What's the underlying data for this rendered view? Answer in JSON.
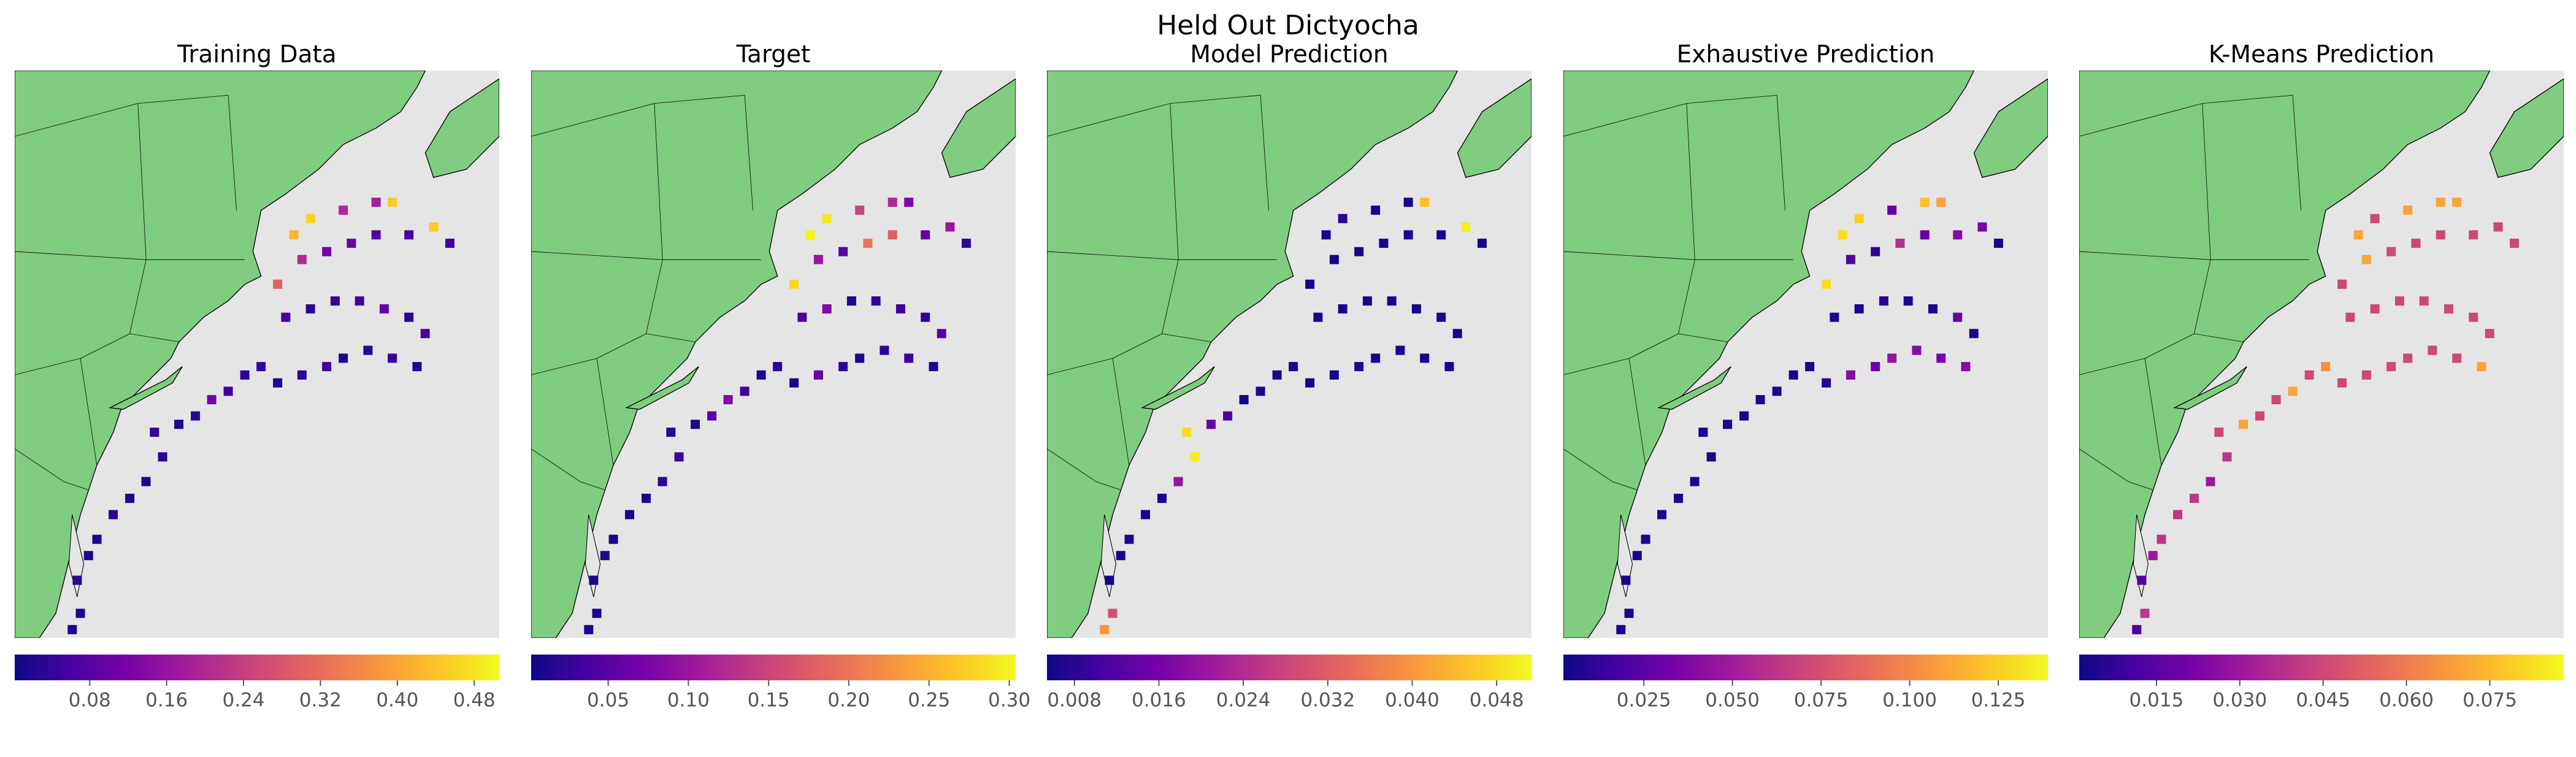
{
  "title": "Held Out Dictyocha",
  "chart_data": [
    {
      "type": "heatmap",
      "title": "Training Data",
      "colormap": "plasma",
      "xlim": [
        -77.5,
        -62
      ],
      "ylim": [
        34.5,
        46
      ],
      "x": [
        -75.66,
        -75.4,
        -75.5,
        -75.14,
        -74.87,
        -74.35,
        -73.82,
        -73.3,
        -72.77,
        -73.03,
        -72.25,
        -71.72,
        -71.2,
        -70.67,
        -70.14,
        -69.62,
        -69.09,
        -68.31,
        -67.52,
        -66.99,
        -66.2,
        -65.42,
        -64.63,
        -64.37,
        -64.89,
        -65.68,
        -66.47,
        -67.25,
        -68.04,
        -68.83,
        -69.09,
        -68.31,
        -67.52,
        -66.73,
        -65.94,
        -64.89,
        -64.1,
        -63.58,
        -68.57,
        -68.04,
        -66.99,
        -65.94,
        -65.42
      ],
      "y": [
        34.67,
        35.0,
        35.67,
        36.17,
        36.5,
        37.0,
        37.33,
        37.67,
        38.17,
        38.67,
        38.83,
        39.0,
        39.33,
        39.5,
        39.83,
        40.0,
        39.67,
        39.83,
        40.0,
        40.17,
        40.33,
        40.17,
        40.0,
        40.67,
        41.0,
        41.17,
        41.33,
        41.33,
        41.17,
        41.0,
        41.67,
        42.17,
        42.33,
        42.5,
        42.67,
        42.67,
        42.83,
        42.5,
        42.67,
        43.0,
        43.17,
        43.33,
        43.33
      ],
      "values": [
        0.02,
        0.02,
        0.03,
        0.02,
        0.02,
        0.03,
        0.02,
        0.02,
        0.03,
        0.04,
        0.02,
        0.03,
        0.12,
        0.05,
        0.03,
        0.04,
        0.02,
        0.03,
        0.05,
        0.02,
        0.03,
        0.04,
        0.02,
        0.06,
        0.03,
        0.1,
        0.05,
        0.04,
        0.03,
        0.06,
        0.3,
        0.2,
        0.12,
        0.1,
        0.08,
        0.06,
        0.45,
        0.05,
        0.42,
        0.46,
        0.2,
        0.18,
        0.45
      ],
      "clim": [
        0.002,
        0.506
      ],
      "cticks": [
        0.08,
        0.16,
        0.24,
        0.32,
        {
          "value": 0.4,
          "label": "0.40"
        },
        0.48
      ]
    },
    {
      "type": "heatmap",
      "title": "Target",
      "colormap": "plasma",
      "xlim": [
        -77.5,
        -62
      ],
      "ylim": [
        34.5,
        46
      ],
      "x": [
        -75.66,
        -75.4,
        -75.5,
        -75.14,
        -74.87,
        -74.35,
        -73.82,
        -73.3,
        -72.77,
        -73.03,
        -72.25,
        -71.72,
        -71.2,
        -70.67,
        -70.14,
        -69.62,
        -69.09,
        -68.31,
        -67.52,
        -66.99,
        -66.2,
        -65.42,
        -64.63,
        -64.37,
        -64.89,
        -65.68,
        -66.47,
        -67.25,
        -68.04,
        -68.83,
        -69.09,
        -68.31,
        -67.52,
        -66.73,
        -65.94,
        -64.89,
        -64.1,
        -63.58,
        -68.57,
        -68.04,
        -66.99,
        -65.94,
        -65.42
      ],
      "y": [
        34.67,
        35.0,
        35.67,
        36.17,
        36.5,
        37.0,
        37.33,
        37.67,
        38.17,
        38.67,
        38.83,
        39.0,
        39.33,
        39.5,
        39.83,
        40.0,
        39.67,
        39.83,
        40.0,
        40.17,
        40.33,
        40.17,
        40.0,
        40.67,
        41.0,
        41.17,
        41.33,
        41.33,
        41.17,
        41.0,
        41.67,
        42.17,
        42.33,
        42.5,
        42.67,
        42.67,
        42.83,
        42.5,
        42.67,
        43.0,
        43.17,
        43.33,
        43.33
      ],
      "values": [
        0.01,
        0.01,
        0.01,
        0.01,
        0.01,
        0.01,
        0.01,
        0.02,
        0.03,
        0.02,
        0.01,
        0.05,
        0.08,
        0.03,
        0.01,
        0.02,
        0.01,
        0.06,
        0.02,
        0.01,
        0.02,
        0.03,
        0.01,
        0.05,
        0.02,
        0.03,
        0.02,
        0.01,
        0.08,
        0.04,
        0.28,
        0.1,
        0.05,
        0.2,
        0.18,
        0.06,
        0.1,
        0.02,
        0.3,
        0.29,
        0.15,
        0.12,
        0.08
      ],
      "clim": [
        0.002,
        0.304
      ],
      "cticks": [
        0.05,
        {
          "value": 0.1,
          "label": "0.10"
        },
        0.15,
        {
          "value": 0.2,
          "label": "0.20"
        },
        0.25,
        {
          "value": 0.3,
          "label": "0.30"
        }
      ]
    },
    {
      "type": "heatmap",
      "title": "Model Prediction",
      "colormap": "plasma",
      "xlim": [
        -77.5,
        -62
      ],
      "ylim": [
        34.5,
        46
      ],
      "x": [
        -75.66,
        -75.4,
        -75.5,
        -75.14,
        -74.87,
        -74.35,
        -73.82,
        -73.3,
        -72.77,
        -73.03,
        -72.25,
        -71.72,
        -71.2,
        -70.67,
        -70.14,
        -69.62,
        -69.09,
        -68.31,
        -67.52,
        -66.99,
        -66.2,
        -65.42,
        -64.63,
        -64.37,
        -64.89,
        -65.68,
        -66.47,
        -67.25,
        -68.04,
        -68.83,
        -69.09,
        -68.31,
        -67.52,
        -66.73,
        -65.94,
        -64.89,
        -64.1,
        -63.58,
        -68.57,
        -68.04,
        -66.99,
        -65.94,
        -65.42
      ],
      "y": [
        34.67,
        35.0,
        35.67,
        36.17,
        36.5,
        37.0,
        37.33,
        37.67,
        38.17,
        38.67,
        38.83,
        39.0,
        39.33,
        39.5,
        39.83,
        40.0,
        39.67,
        39.83,
        40.0,
        40.17,
        40.33,
        40.17,
        40.0,
        40.67,
        41.0,
        41.17,
        41.33,
        41.33,
        41.17,
        41.0,
        41.67,
        42.17,
        42.33,
        42.5,
        42.67,
        42.67,
        42.83,
        42.5,
        42.67,
        43.0,
        43.17,
        43.33,
        43.33
      ],
      "values": [
        0.04,
        0.03,
        0.006,
        0.006,
        0.007,
        0.006,
        0.006,
        0.02,
        0.05,
        0.048,
        0.015,
        0.012,
        0.006,
        0.007,
        0.006,
        0.006,
        0.006,
        0.006,
        0.007,
        0.006,
        0.006,
        0.006,
        0.006,
        0.006,
        0.007,
        0.006,
        0.006,
        0.006,
        0.006,
        0.006,
        0.006,
        0.006,
        0.006,
        0.006,
        0.007,
        0.006,
        0.05,
        0.006,
        0.006,
        0.008,
        0.006,
        0.006,
        0.045
      ],
      "clim": [
        0.0054,
        0.0513
      ],
      "cticks": [
        0.008,
        0.016,
        0.024,
        0.032,
        {
          "value": 0.04,
          "label": "0.040"
        },
        0.048
      ]
    },
    {
      "type": "heatmap",
      "title": "Exhaustive Prediction",
      "colormap": "plasma",
      "xlim": [
        -77.5,
        -62
      ],
      "ylim": [
        34.5,
        46
      ],
      "x": [
        -75.66,
        -75.4,
        -75.5,
        -75.14,
        -74.87,
        -74.35,
        -73.82,
        -73.3,
        -72.77,
        -73.03,
        -72.25,
        -71.72,
        -71.2,
        -70.67,
        -70.14,
        -69.62,
        -69.09,
        -68.31,
        -67.52,
        -66.99,
        -66.2,
        -65.42,
        -64.63,
        -64.37,
        -64.89,
        -65.68,
        -66.47,
        -67.25,
        -68.04,
        -68.83,
        -69.09,
        -68.31,
        -67.52,
        -66.73,
        -65.94,
        -64.89,
        -64.1,
        -63.58,
        -68.57,
        -68.04,
        -66.99,
        -65.94,
        -65.42
      ],
      "y": [
        34.67,
        35.0,
        35.67,
        36.17,
        36.5,
        37.0,
        37.33,
        37.67,
        38.17,
        38.67,
        38.83,
        39.0,
        39.33,
        39.5,
        39.83,
        40.0,
        39.67,
        39.83,
        40.0,
        40.17,
        40.33,
        40.17,
        40.0,
        40.67,
        41.0,
        41.17,
        41.33,
        41.33,
        41.17,
        41.0,
        41.67,
        42.17,
        42.33,
        42.5,
        42.67,
        42.67,
        42.83,
        42.5,
        42.67,
        43.0,
        43.17,
        43.33,
        43.33
      ],
      "values": [
        0.005,
        0.005,
        0.005,
        0.005,
        0.005,
        0.005,
        0.005,
        0.005,
        0.005,
        0.005,
        0.005,
        0.005,
        0.006,
        0.005,
        0.005,
        0.005,
        0.01,
        0.04,
        0.03,
        0.045,
        0.04,
        0.035,
        0.04,
        0.006,
        0.03,
        0.006,
        0.005,
        0.01,
        0.006,
        0.006,
        0.13,
        0.02,
        0.01,
        0.06,
        0.03,
        0.04,
        0.035,
        0.006,
        0.13,
        0.125,
        0.03,
        0.12,
        0.11
      ],
      "clim": [
        0.0023,
        0.139
      ],
      "cticks": [
        0.025,
        {
          "value": 0.05,
          "label": "0.050"
        },
        0.075,
        {
          "value": 0.1,
          "label": "0.100"
        },
        0.125
      ]
    },
    {
      "type": "heatmap",
      "title": "K-Means Prediction",
      "colormap": "plasma",
      "xlim": [
        -77.5,
        -62
      ],
      "ylim": [
        34.5,
        46
      ],
      "x": [
        -75.66,
        -75.4,
        -75.5,
        -75.14,
        -74.87,
        -74.35,
        -73.82,
        -73.3,
        -72.77,
        -73.03,
        -72.25,
        -71.72,
        -71.2,
        -70.67,
        -70.14,
        -69.62,
        -69.09,
        -68.31,
        -67.52,
        -66.99,
        -66.2,
        -65.42,
        -64.63,
        -64.37,
        -64.89,
        -65.68,
        -66.47,
        -67.25,
        -68.04,
        -68.83,
        -69.09,
        -68.31,
        -67.52,
        -66.73,
        -65.94,
        -64.89,
        -64.1,
        -63.58,
        -68.57,
        -68.04,
        -66.99,
        -65.94,
        -65.42
      ],
      "y": [
        34.67,
        35.0,
        35.67,
        36.17,
        36.5,
        37.0,
        37.33,
        37.67,
        38.17,
        38.67,
        38.83,
        39.0,
        39.33,
        39.5,
        39.83,
        40.0,
        39.67,
        39.83,
        40.0,
        40.17,
        40.33,
        40.17,
        40.0,
        40.67,
        41.0,
        41.17,
        41.33,
        41.33,
        41.17,
        41.0,
        41.67,
        42.17,
        42.33,
        42.5,
        42.67,
        42.67,
        42.83,
        42.5,
        42.67,
        43.0,
        43.17,
        43.33,
        43.33
      ],
      "values": [
        0.012,
        0.04,
        0.015,
        0.03,
        0.04,
        0.04,
        0.04,
        0.03,
        0.04,
        0.045,
        0.07,
        0.045,
        0.045,
        0.07,
        0.045,
        0.065,
        0.045,
        0.045,
        0.045,
        0.045,
        0.045,
        0.045,
        0.07,
        0.045,
        0.045,
        0.045,
        0.045,
        0.045,
        0.045,
        0.045,
        0.045,
        0.07,
        0.045,
        0.045,
        0.045,
        0.045,
        0.045,
        0.045,
        0.07,
        0.045,
        0.07,
        0.07,
        0.07
      ],
      "clim": [
        0.0011,
        0.0883
      ],
      "cticks": [
        0.015,
        {
          "value": 0.03,
          "label": "0.030"
        },
        0.045,
        {
          "value": 0.06,
          "label": "0.060"
        },
        0.075
      ]
    }
  ]
}
